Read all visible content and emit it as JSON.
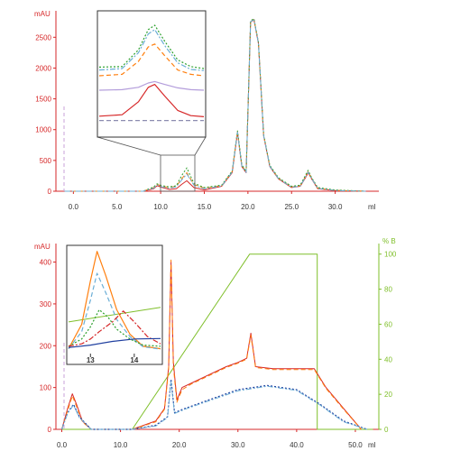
{
  "chart_data": [
    {
      "type": "line",
      "yunit": "mAU",
      "xunit": "ml",
      "xlim": [
        -2,
        35
      ],
      "ylim": [
        0,
        2900
      ],
      "xticks": [
        "0.0",
        "5.0",
        "10.0",
        "15.0",
        "20.0",
        "25.0",
        "30.0"
      ],
      "yticks": [
        "0",
        "500",
        "1000",
        "1500",
        "2000",
        "2500"
      ],
      "grid": false,
      "series": [
        {
          "color": "#d62728",
          "x": [
            -1,
            8,
            9.2,
            9.6,
            10.2,
            11,
            11.8,
            12.4,
            13,
            13.8,
            15,
            17,
            18.2,
            18.8,
            19.3,
            19.8,
            20.3,
            20.7,
            21.2,
            21.8,
            22.5,
            23.5,
            25,
            26,
            26.6,
            26.9,
            27.3,
            28,
            30,
            33.5
          ],
          "y": [
            0,
            0,
            40,
            90,
            60,
            30,
            40,
            110,
            170,
            60,
            20,
            80,
            300,
            950,
            400,
            300,
            2750,
            2780,
            2400,
            900,
            400,
            200,
            60,
            80,
            220,
            300,
            200,
            40,
            10,
            0
          ]
        },
        {
          "color": "#ff7f0e",
          "x": [
            -1,
            8,
            9.2,
            9.6,
            10.2,
            11,
            11.8,
            12.4,
            13,
            13.8,
            15,
            17,
            18.2,
            18.8,
            19.3,
            19.8,
            20.3,
            20.7,
            21.2,
            21.8,
            22.5,
            23.5,
            25,
            26,
            26.6,
            26.9,
            27.3,
            28,
            30,
            33.5
          ],
          "y": [
            0,
            0,
            60,
            110,
            80,
            60,
            80,
            200,
            300,
            110,
            50,
            90,
            320,
            970,
            420,
            310,
            2760,
            2790,
            2410,
            910,
            410,
            210,
            70,
            90,
            240,
            320,
            210,
            50,
            15,
            0
          ]
        },
        {
          "color": "#2ca02c",
          "x": [
            -1,
            8,
            9.2,
            9.6,
            10.2,
            11,
            11.8,
            12.4,
            13,
            13.8,
            15,
            17,
            18.2,
            18.8,
            19.3,
            19.8,
            20.3,
            20.7,
            21.2,
            21.8,
            22.5,
            23.5,
            25,
            26,
            26.6,
            26.9,
            27.3,
            28,
            30,
            33.5
          ],
          "y": [
            0,
            0,
            70,
            120,
            90,
            70,
            90,
            250,
            380,
            130,
            60,
            100,
            330,
            980,
            430,
            320,
            2770,
            2800,
            2420,
            920,
            420,
            220,
            80,
            100,
            260,
            340,
            220,
            60,
            20,
            0
          ]
        },
        {
          "color": "#6baed6",
          "x": [
            -1,
            8,
            9.2,
            9.6,
            10.2,
            11,
            11.8,
            12.4,
            13,
            13.8,
            15,
            17,
            18.2,
            18.8,
            19.3,
            19.8,
            20.3,
            20.7,
            21.2,
            21.8,
            22.5,
            23.5,
            25,
            26,
            26.6,
            26.9,
            27.3,
            28,
            30,
            33.5
          ],
          "y": [
            0,
            0,
            50,
            100,
            70,
            50,
            70,
            180,
            280,
            100,
            40,
            85,
            310,
            960,
            410,
            305,
            2755,
            2785,
            2405,
            905,
            405,
            205,
            65,
            85,
            230,
            310,
            205,
            45,
            12,
            0
          ]
        }
      ],
      "inset": {
        "xlim": [
          11.3,
          14.5
        ],
        "ylim": [
          0,
          400
        ],
        "series": [
          {
            "color": "#d62728",
            "x": [
              11.3,
              12.0,
              12.5,
              12.8,
              13.0,
              13.3,
              13.7,
              14.1,
              14.5
            ],
            "y": [
              60,
              65,
              110,
              160,
              170,
              130,
              80,
              62,
              58
            ]
          },
          {
            "color": "#ff7f0e",
            "x": [
              11.3,
              12.0,
              12.5,
              12.8,
              13.0,
              13.3,
              13.7,
              14.1,
              14.5
            ],
            "y": [
              200,
              205,
              250,
              300,
              310,
              270,
              220,
              205,
              200
            ]
          },
          {
            "color": "#2ca02c",
            "x": [
              11.3,
              12.0,
              12.5,
              12.8,
              13.0,
              13.3,
              13.7,
              14.1,
              14.5
            ],
            "y": [
              230,
              232,
              290,
              360,
              375,
              320,
              255,
              232,
              225
            ]
          },
          {
            "color": "#6baed6",
            "x": [
              11.3,
              12.0,
              12.5,
              12.8,
              13.0,
              13.3,
              13.7,
              14.1,
              14.5
            ],
            "y": [
              220,
              225,
              280,
              345,
              360,
              305,
              245,
              222,
              218
            ]
          },
          {
            "color": "#b39ddb",
            "x": [
              11.3,
              12.0,
              12.5,
              12.8,
              13.0,
              13.3,
              13.7,
              14.1,
              14.5
            ],
            "y": [
              150,
              152,
              160,
              175,
              180,
              170,
              158,
              152,
              150
            ]
          },
          {
            "color": "#8c8cb0",
            "x": [
              11.3,
              14.5
            ],
            "y": [
              45,
              45
            ]
          }
        ]
      }
    },
    {
      "type": "line",
      "yunit": "mAU",
      "xunit": "ml",
      "y2unit": "% B",
      "xlim": [
        -1,
        54
      ],
      "ylim": [
        0,
        440
      ],
      "y2lim": [
        0,
        105
      ],
      "xticks": [
        "0.0",
        "10.0",
        "20.0",
        "30.0",
        "40.0",
        "50.0"
      ],
      "yticks": [
        "0",
        "100",
        "200",
        "300",
        "400"
      ],
      "y2ticks": [
        "0",
        "20",
        "40",
        "60",
        "80",
        "100"
      ],
      "grid": false,
      "series": [
        {
          "color": "#d62728",
          "x": [
            0,
            1,
            1.8,
            2.5,
            3.5,
            5,
            12,
            16,
            17.5,
            18.2,
            18.6,
            19.0,
            19.6,
            20.5,
            22,
            25,
            28,
            30,
            31.5,
            32.2,
            33,
            36,
            40,
            43,
            45,
            48,
            51
          ],
          "y": [
            0,
            50,
            85,
            60,
            20,
            0,
            0,
            20,
            50,
            150,
            400,
            160,
            70,
            100,
            110,
            130,
            150,
            160,
            170,
            230,
            150,
            145,
            145,
            145,
            100,
            50,
            0
          ]
        },
        {
          "color": "#ff7f0e",
          "x": [
            0,
            1,
            1.8,
            2.5,
            3.5,
            5,
            12,
            16,
            17.5,
            18.2,
            18.6,
            19.0,
            19.6,
            20.5,
            22,
            25,
            28,
            30,
            31.5,
            32.2,
            33,
            36,
            40,
            43,
            45,
            48,
            51
          ],
          "y": [
            0,
            45,
            80,
            55,
            18,
            0,
            0,
            18,
            48,
            145,
            405,
            150,
            65,
            95,
            108,
            128,
            148,
            158,
            168,
            225,
            148,
            143,
            143,
            143,
            98,
            48,
            0
          ]
        },
        {
          "color": "#1f3f9f",
          "x": [
            0,
            1,
            2,
            3,
            5,
            12,
            16,
            18,
            18.6,
            19.2,
            21,
            25,
            30,
            35,
            40,
            44,
            48,
            52
          ],
          "y": [
            0,
            40,
            60,
            30,
            0,
            0,
            10,
            30,
            120,
            40,
            50,
            70,
            95,
            105,
            95,
            60,
            20,
            0
          ]
        },
        {
          "color": "#6baed6",
          "x": [
            0,
            1,
            2,
            3,
            5,
            12,
            16,
            18,
            18.6,
            19.2,
            21,
            25,
            30,
            35,
            40,
            44,
            48,
            52
          ],
          "y": [
            0,
            38,
            58,
            28,
            0,
            0,
            8,
            28,
            115,
            38,
            48,
            68,
            92,
            103,
            93,
            58,
            18,
            0
          ]
        }
      ],
      "gradient": {
        "color": "#7fbf2a",
        "x": [
          0,
          12,
          32,
          43.5,
          43.5,
          53
        ],
        "y": [
          0,
          0,
          100,
          100,
          0,
          0
        ]
      },
      "inset": {
        "xlim": [
          12.5,
          14.6
        ],
        "ylim": [
          0,
          430
        ],
        "xticks": [
          "13",
          "14"
        ],
        "series": [
          {
            "color": "#ff7f0e",
            "x": [
              12.5,
              12.8,
              13.0,
              13.15,
              13.35,
              13.6,
              13.9,
              14.2,
              14.6
            ],
            "y": [
              20,
              120,
              300,
              420,
              320,
              180,
              80,
              30,
              20
            ]
          },
          {
            "color": "#6baed6",
            "x": [
              12.5,
              12.8,
              13.0,
              13.15,
              13.35,
              13.6,
              13.9,
              14.2,
              14.6
            ],
            "y": [
              20,
              90,
              220,
              330,
              250,
              140,
              70,
              28,
              18
            ]
          },
          {
            "color": "#2ca02c",
            "x": [
              12.5,
              12.8,
              13.0,
              13.2,
              13.4,
              13.6,
              13.9,
              14.2,
              14.6
            ],
            "y": [
              30,
              60,
              110,
              180,
              150,
              100,
              60,
              35,
              30
            ]
          },
          {
            "color": "#d62728",
            "x": [
              12.5,
              12.8,
              13.0,
              13.2,
              13.5,
              13.75,
              14.0,
              14.3,
              14.6
            ],
            "y": [
              30,
              40,
              60,
              90,
              130,
              175,
              130,
              70,
              40
            ]
          },
          {
            "color": "#1f3f9f",
            "x": [
              12.5,
              13.0,
              13.5,
              14.0,
              14.6
            ],
            "y": [
              25,
              35,
              50,
              60,
              62
            ]
          }
        ],
        "gradient": {
          "color": "#7fbf2a",
          "x": [
            12.5,
            14.6
          ],
          "y": [
            130,
            190
          ]
        }
      }
    }
  ]
}
